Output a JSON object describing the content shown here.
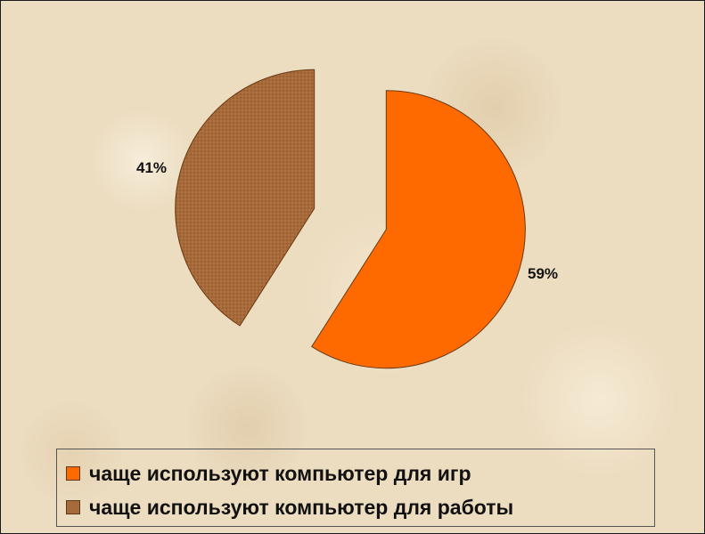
{
  "chart_data": {
    "type": "pie",
    "title": "",
    "legend_position": "bottom",
    "slices": [
      {
        "label": "чаще используют компьютер для игр",
        "value": 59,
        "value_label": "59%",
        "color": "#ff6a00",
        "exploded": true
      },
      {
        "label": "чаще используют компьютер для работы",
        "value": 41,
        "value_label": "41%",
        "color": "#a76a3a",
        "exploded": true
      }
    ]
  },
  "colors": {
    "background": "#ecdcc0",
    "legend_border": "#555555"
  }
}
